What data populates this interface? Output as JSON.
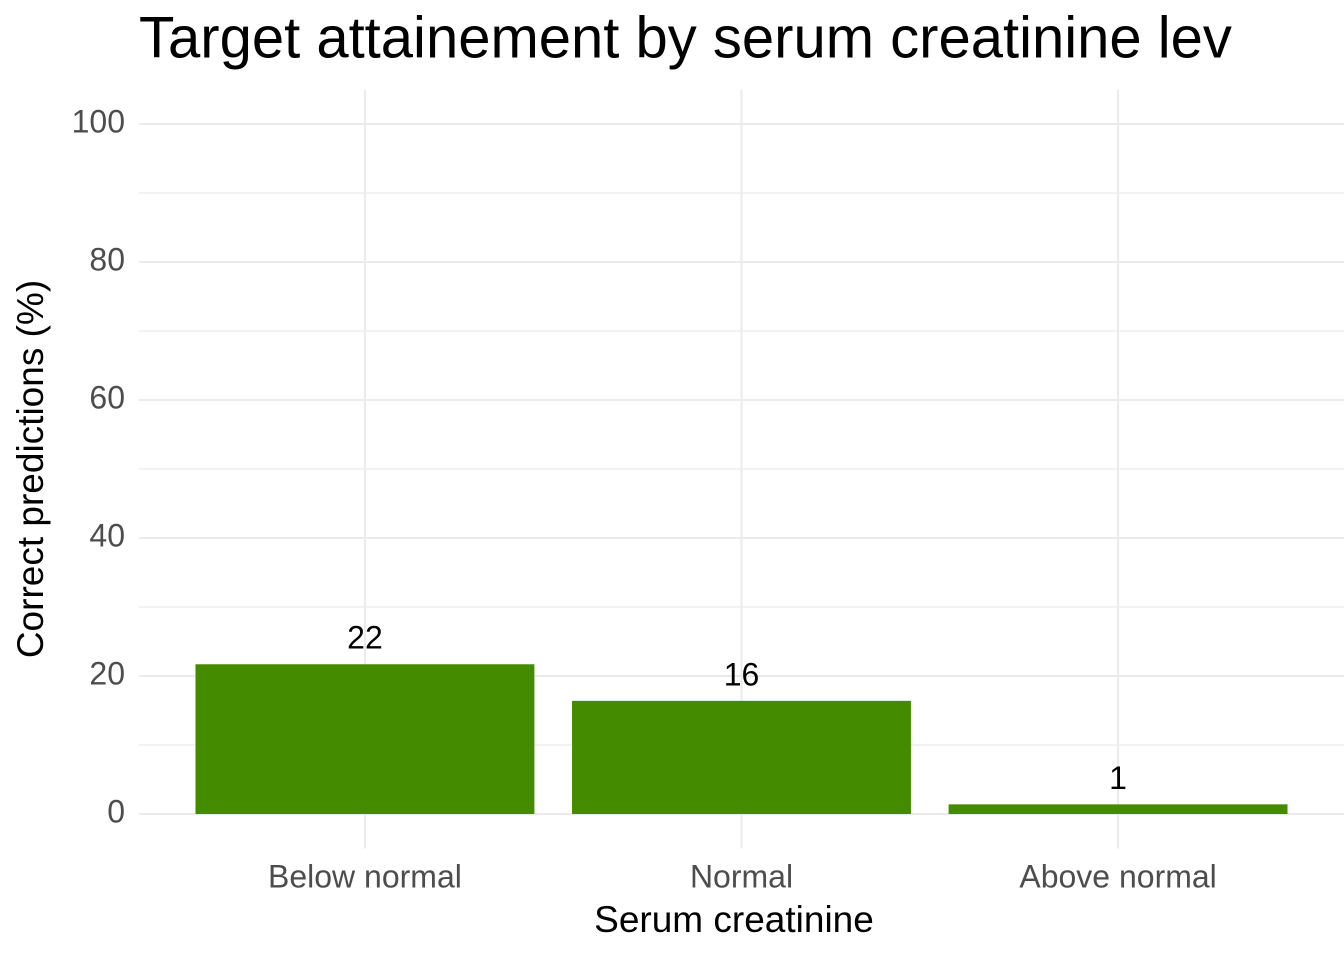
{
  "chart_data": {
    "type": "bar",
    "title": "Target attainement by serum creatinine lev",
    "x_label": "Serum creatinine",
    "y_label": "Correct predictions (%)",
    "categories": [
      "Below normal",
      "Normal",
      "Above normal"
    ],
    "values": [
      21.7,
      16.4,
      1.4
    ],
    "value_labels": [
      "22",
      "16",
      "1"
    ],
    "color": "#458b00",
    "ylim": [
      -5,
      105
    ],
    "yticks": [
      0,
      20,
      40,
      60,
      80,
      100
    ],
    "yminor_ticks": [
      10,
      30,
      50,
      70,
      90
    ],
    "grid": true
  }
}
